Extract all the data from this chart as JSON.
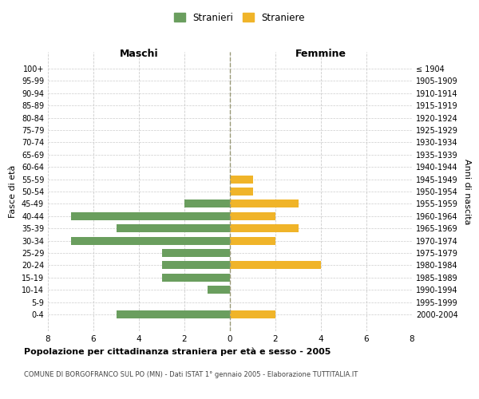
{
  "age_groups": [
    "100+",
    "95-99",
    "90-94",
    "85-89",
    "80-84",
    "75-79",
    "70-74",
    "65-69",
    "60-64",
    "55-59",
    "50-54",
    "45-49",
    "40-44",
    "35-39",
    "30-34",
    "25-29",
    "20-24",
    "15-19",
    "10-14",
    "5-9",
    "0-4"
  ],
  "birth_years": [
    "≤ 1904",
    "1905-1909",
    "1910-1914",
    "1915-1919",
    "1920-1924",
    "1925-1929",
    "1930-1934",
    "1935-1939",
    "1940-1944",
    "1945-1949",
    "1950-1954",
    "1955-1959",
    "1960-1964",
    "1965-1969",
    "1970-1974",
    "1975-1979",
    "1980-1984",
    "1985-1989",
    "1990-1994",
    "1995-1999",
    "2000-2004"
  ],
  "maschi": [
    0,
    0,
    0,
    0,
    0,
    0,
    0,
    0,
    0,
    0,
    0,
    2,
    7,
    5,
    7,
    3,
    3,
    3,
    1,
    0,
    5
  ],
  "femmine": [
    0,
    0,
    0,
    0,
    0,
    0,
    0,
    0,
    0,
    1,
    1,
    3,
    2,
    3,
    2,
    0,
    4,
    0,
    0,
    0,
    2
  ],
  "color_maschi": "#6a9e5e",
  "color_femmine": "#f0b429",
  "title": "Popolazione per cittadinanza straniera per età e sesso - 2005",
  "subtitle": "COMUNE DI BORGOFRANCO SUL PO (MN) - Dati ISTAT 1° gennaio 2005 - Elaborazione TUTTITALIA.IT",
  "xlabel_left": "Maschi",
  "xlabel_right": "Femmine",
  "ylabel_left": "Fasce di età",
  "ylabel_right": "Anni di nascita",
  "legend_maschi": "Stranieri",
  "legend_femmine": "Straniere",
  "xlim": 8,
  "bg_color": "#ffffff",
  "grid_color": "#cccccc"
}
